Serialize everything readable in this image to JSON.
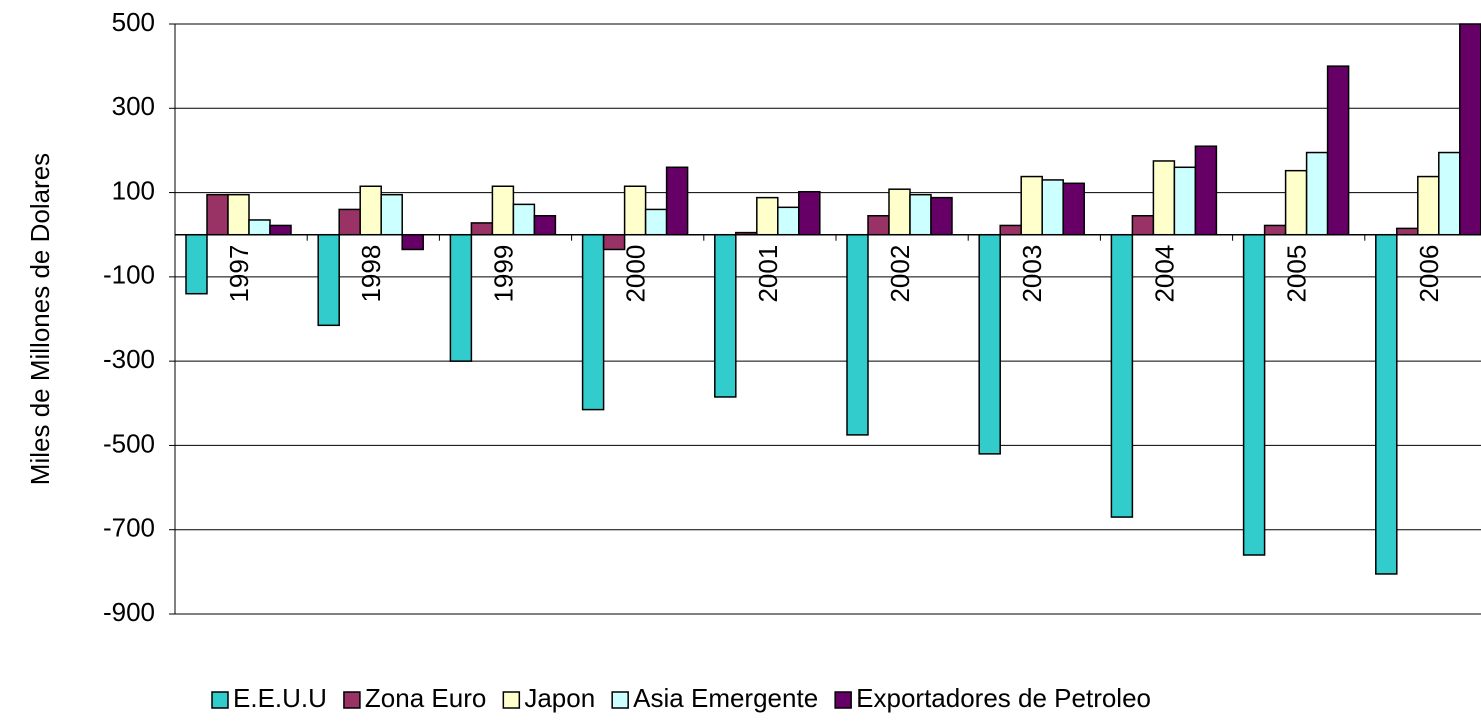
{
  "chart_data": {
    "type": "bar",
    "y_label": "Miles de Millones de Dolares",
    "categories": [
      "1997",
      "1998",
      "1999",
      "2000",
      "2001",
      "2002",
      "2003",
      "2004",
      "2005",
      "2006"
    ],
    "series": [
      {
        "name": "E.E.U.U",
        "color": "#33cccc",
        "values": [
          -140,
          -215,
          -300,
          -415,
          -385,
          -475,
          -520,
          -670,
          -760,
          -805
        ]
      },
      {
        "name": "Zona Euro",
        "color": "#993366",
        "values": [
          95,
          60,
          28,
          -35,
          5,
          45,
          22,
          45,
          22,
          15
        ]
      },
      {
        "name": "Japon",
        "color": "#ffffcc",
        "values": [
          95,
          115,
          115,
          115,
          88,
          108,
          138,
          175,
          152,
          138
        ]
      },
      {
        "name": "Asia Emergente",
        "color": "#ccffff",
        "values": [
          35,
          95,
          72,
          60,
          65,
          95,
          130,
          160,
          195,
          195
        ]
      },
      {
        "name": "Exportadores de Petroleo",
        "color": "#660066",
        "values": [
          22,
          -35,
          45,
          160,
          102,
          88,
          122,
          210,
          400,
          500
        ]
      }
    ],
    "ylim": [
      -900,
      500
    ],
    "yticks": [
      -900,
      -700,
      -500,
      -300,
      -100,
      100,
      300,
      500
    ],
    "grid": true
  }
}
